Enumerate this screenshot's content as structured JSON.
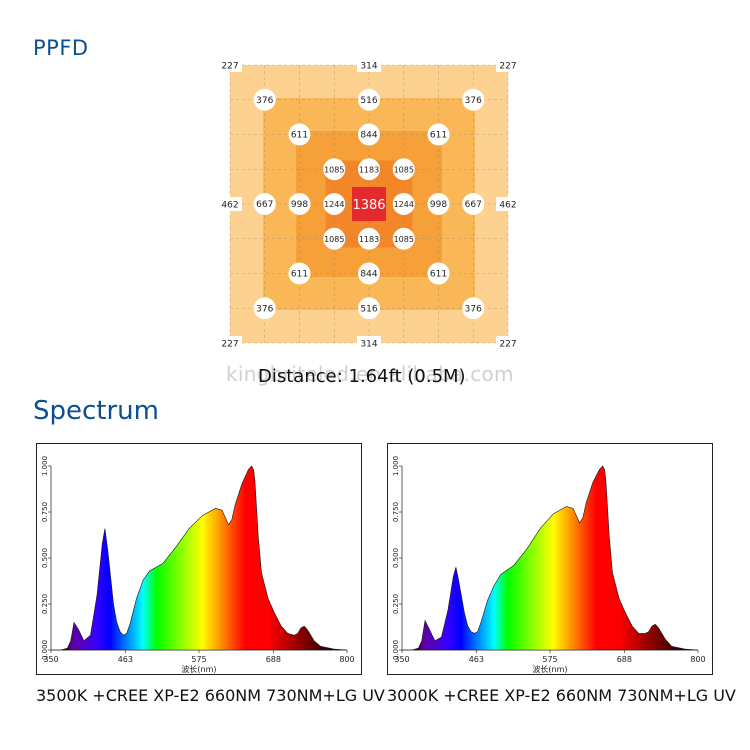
{
  "ppfd": {
    "title": "PPFD",
    "distance": "Distance: 1.64ft (0.5M)",
    "watermark": "kingbriteled.en.alibaba.com",
    "points": [
      {
        "v": "227",
        "gx": 0,
        "gy": 0,
        "style": "corner"
      },
      {
        "v": "314",
        "gx": 4,
        "gy": 0,
        "style": "corner"
      },
      {
        "v": "227",
        "gx": 8,
        "gy": 0,
        "style": "corner"
      },
      {
        "v": "376",
        "gx": 1,
        "gy": 1,
        "style": "dot"
      },
      {
        "v": "516",
        "gx": 4,
        "gy": 1,
        "style": "dot"
      },
      {
        "v": "376",
        "gx": 7,
        "gy": 1,
        "style": "dot"
      },
      {
        "v": "611",
        "gx": 2,
        "gy": 2,
        "style": "dot"
      },
      {
        "v": "844",
        "gx": 4,
        "gy": 2,
        "style": "dot"
      },
      {
        "v": "611",
        "gx": 6,
        "gy": 2,
        "style": "dot"
      },
      {
        "v": "1085",
        "gx": 3,
        "gy": 3,
        "style": "dot"
      },
      {
        "v": "1183",
        "gx": 4,
        "gy": 3,
        "style": "dot"
      },
      {
        "v": "1085",
        "gx": 5,
        "gy": 3,
        "style": "dot"
      },
      {
        "v": "462",
        "gx": 0,
        "gy": 4,
        "style": "corner"
      },
      {
        "v": "667",
        "gx": 1,
        "gy": 4,
        "style": "dot"
      },
      {
        "v": "998",
        "gx": 2,
        "gy": 4,
        "style": "dot"
      },
      {
        "v": "1244",
        "gx": 3,
        "gy": 4,
        "style": "dot"
      },
      {
        "v": "1386",
        "gx": 4,
        "gy": 4,
        "style": "center"
      },
      {
        "v": "1244",
        "gx": 5,
        "gy": 4,
        "style": "dot"
      },
      {
        "v": "998",
        "gx": 6,
        "gy": 4,
        "style": "dot"
      },
      {
        "v": "667",
        "gx": 7,
        "gy": 4,
        "style": "dot"
      },
      {
        "v": "462",
        "gx": 8,
        "gy": 4,
        "style": "corner"
      },
      {
        "v": "1085",
        "gx": 3,
        "gy": 5,
        "style": "dot"
      },
      {
        "v": "1183",
        "gx": 4,
        "gy": 5,
        "style": "dot"
      },
      {
        "v": "1085",
        "gx": 5,
        "gy": 5,
        "style": "dot"
      },
      {
        "v": "611",
        "gx": 2,
        "gy": 6,
        "style": "dot"
      },
      {
        "v": "844",
        "gx": 4,
        "gy": 6,
        "style": "dot"
      },
      {
        "v": "611",
        "gx": 6,
        "gy": 6,
        "style": "dot"
      },
      {
        "v": "376",
        "gx": 1,
        "gy": 7,
        "style": "dot"
      },
      {
        "v": "516",
        "gx": 4,
        "gy": 7,
        "style": "dot"
      },
      {
        "v": "376",
        "gx": 7,
        "gy": 7,
        "style": "dot"
      },
      {
        "v": "227",
        "gx": 0,
        "gy": 8,
        "style": "corner"
      },
      {
        "v": "314",
        "gx": 4,
        "gy": 8,
        "style": "corner"
      },
      {
        "v": "227",
        "gx": 8,
        "gy": 8,
        "style": "corner"
      }
    ],
    "zone_colors": [
      "#fdd291",
      "#f9b758",
      "#f6a03a",
      "#f28628",
      "#ea3a30"
    ]
  },
  "spectrum": {
    "title": "Spectrum"
  },
  "chart_data": [
    {
      "type": "area",
      "title": "3500K +CREE XP-E2 660NM 730NM+LG UV",
      "xlabel": "波长(nm)",
      "ylabel": "",
      "xlim": [
        350,
        800
      ],
      "ylim": [
        0,
        1.0
      ],
      "x_ticks": [
        "350",
        "463",
        "575",
        "688",
        "800"
      ],
      "y_ticks": [
        "0.000",
        "0.250",
        "0.500",
        "0.750",
        "1.000"
      ],
      "x": [
        350,
        365,
        375,
        380,
        385,
        392,
        400,
        410,
        420,
        428,
        432,
        436,
        440,
        445,
        450,
        455,
        460,
        465,
        470,
        480,
        490,
        500,
        520,
        540,
        560,
        580,
        600,
        610,
        615,
        620,
        625,
        630,
        640,
        650,
        655,
        658,
        660,
        662,
        665,
        670,
        680,
        690,
        700,
        710,
        720,
        725,
        730,
        735,
        740,
        750,
        760,
        780,
        800
      ],
      "values": [
        0,
        0,
        0.01,
        0.05,
        0.15,
        0.11,
        0.05,
        0.08,
        0.3,
        0.58,
        0.66,
        0.55,
        0.42,
        0.25,
        0.15,
        0.1,
        0.08,
        0.09,
        0.14,
        0.28,
        0.38,
        0.43,
        0.47,
        0.56,
        0.66,
        0.73,
        0.77,
        0.76,
        0.72,
        0.68,
        0.71,
        0.79,
        0.9,
        0.98,
        1.0,
        0.98,
        0.92,
        0.8,
        0.62,
        0.42,
        0.28,
        0.2,
        0.13,
        0.09,
        0.08,
        0.09,
        0.12,
        0.13,
        0.11,
        0.05,
        0.02,
        0.005,
        0
      ]
    },
    {
      "type": "area",
      "title": "3000K +CREE XP-E2 660NM 730NM+LG UV",
      "xlabel": "波长(nm)",
      "ylabel": "",
      "xlim": [
        350,
        800
      ],
      "ylim": [
        0,
        1.0
      ],
      "x_ticks": [
        "350",
        "463",
        "575",
        "688",
        "800"
      ],
      "y_ticks": [
        "0.000",
        "0.250",
        "0.500",
        "0.750",
        "1.000"
      ],
      "x": [
        350,
        365,
        375,
        380,
        385,
        392,
        400,
        410,
        420,
        428,
        432,
        436,
        440,
        445,
        450,
        455,
        460,
        465,
        470,
        480,
        490,
        500,
        520,
        540,
        560,
        580,
        600,
        610,
        615,
        620,
        625,
        630,
        640,
        650,
        655,
        658,
        660,
        662,
        665,
        670,
        680,
        690,
        700,
        710,
        720,
        725,
        730,
        735,
        740,
        750,
        760,
        780,
        800
      ],
      "values": [
        0,
        0,
        0.01,
        0.05,
        0.16,
        0.11,
        0.05,
        0.07,
        0.22,
        0.4,
        0.45,
        0.38,
        0.3,
        0.2,
        0.13,
        0.1,
        0.09,
        0.1,
        0.15,
        0.27,
        0.35,
        0.41,
        0.46,
        0.55,
        0.66,
        0.74,
        0.78,
        0.77,
        0.73,
        0.69,
        0.72,
        0.8,
        0.91,
        0.98,
        1.0,
        0.98,
        0.92,
        0.8,
        0.62,
        0.42,
        0.28,
        0.2,
        0.13,
        0.09,
        0.09,
        0.1,
        0.13,
        0.14,
        0.12,
        0.06,
        0.02,
        0.005,
        0
      ]
    }
  ]
}
